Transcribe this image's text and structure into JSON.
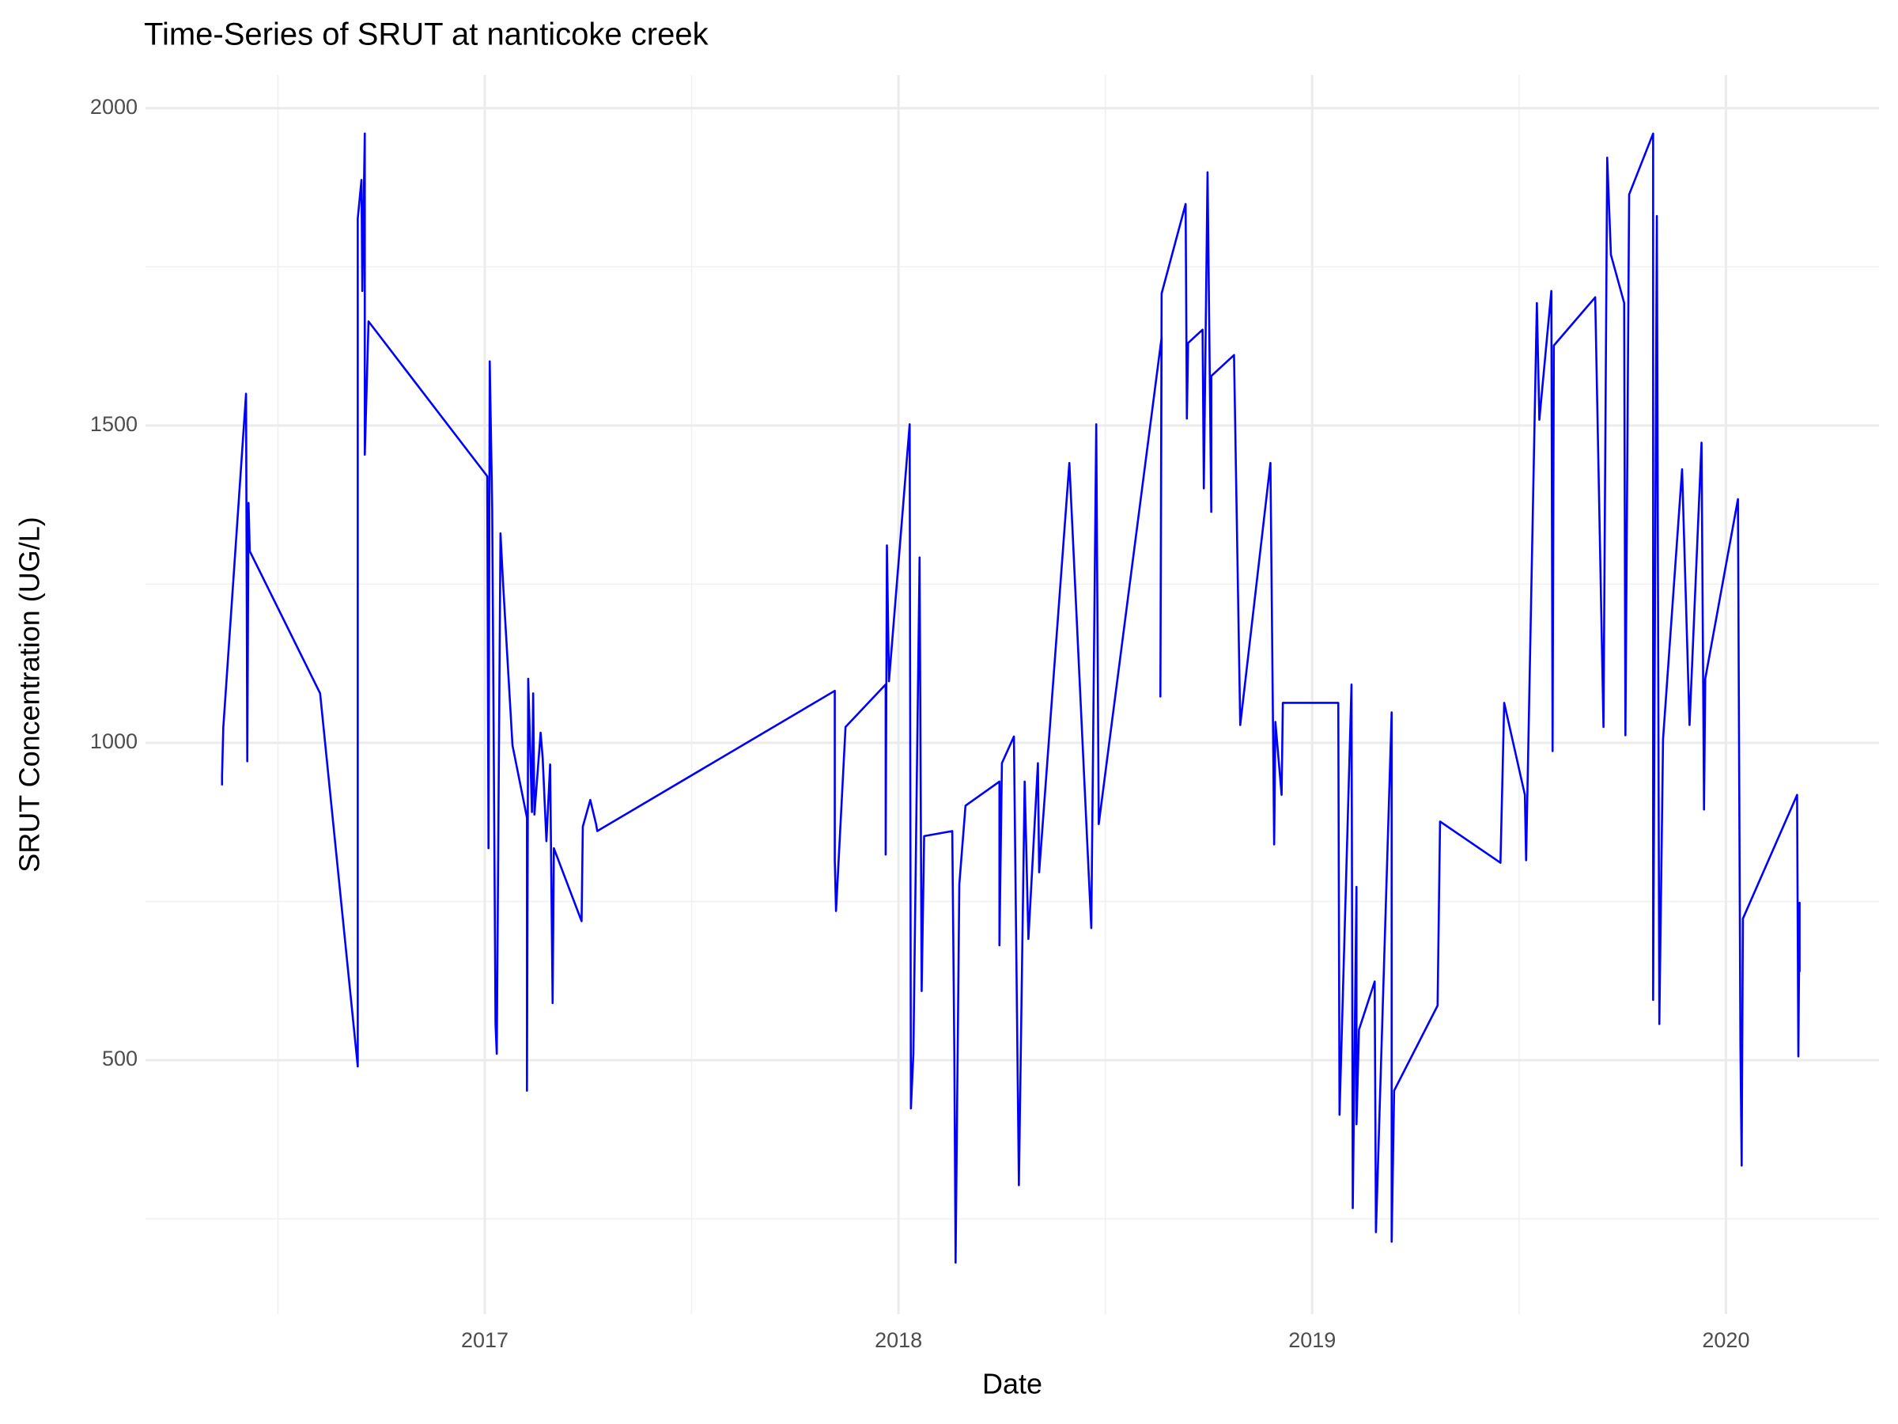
{
  "chart_data": {
    "type": "line",
    "title": "Time-Series of SRUT at nanticoke creek",
    "x_label": "Date",
    "y_label": "SRUT Concentration (UG/L)",
    "x": [
      2016.365,
      2016.365,
      2016.368,
      2016.423,
      2016.426,
      2016.429,
      2016.432,
      2016.602,
      2016.693,
      2016.693,
      2016.702,
      2016.704,
      2016.71,
      2016.71,
      2016.719,
      2017.006,
      2017.009,
      2017.012,
      2017.018,
      2017.026,
      2017.029,
      2017.038,
      2017.044,
      2017.067,
      2017.102,
      2017.102,
      2017.105,
      2017.114,
      2017.117,
      2017.12,
      2017.135,
      2017.14,
      2017.149,
      2017.158,
      2017.164,
      2017.167,
      2017.234,
      2017.237,
      2017.255,
      2017.269,
      2017.272,
      2017.846,
      2017.846,
      2017.849,
      2017.872,
      2017.969,
      2017.969,
      2017.972,
      2017.977,
      2018.027,
      2018.03,
      2018.036,
      2018.051,
      2018.056,
      2018.062,
      2018.13,
      2018.135,
      2018.138,
      2018.147,
      2018.162,
      2018.244,
      2018.244,
      2018.25,
      2018.279,
      2018.291,
      2018.305,
      2018.314,
      2018.337,
      2018.34,
      2018.413,
      2018.466,
      2018.478,
      2018.484,
      2018.636,
      2018.633,
      2018.636,
      2018.694,
      2018.697,
      2018.7,
      2018.735,
      2018.738,
      2018.747,
      2018.756,
      2018.756,
      2018.811,
      2018.826,
      2018.899,
      2018.908,
      2018.911,
      2018.926,
      2018.929,
      2019.063,
      2019.066,
      2019.095,
      2019.098,
      2019.107,
      2019.107,
      2019.113,
      2019.151,
      2019.154,
      2019.192,
      2019.192,
      2019.198,
      2019.303,
      2019.309,
      2019.455,
      2019.464,
      2019.514,
      2019.517,
      2019.543,
      2019.549,
      2019.578,
      2019.581,
      2019.584,
      2019.684,
      2019.704,
      2019.713,
      2019.722,
      2019.754,
      2019.757,
      2019.766,
      2019.824,
      2019.824,
      2019.833,
      2019.839,
      2019.848,
      2019.894,
      2019.912,
      2019.941,
      2019.947,
      2019.95,
      2020.029,
      2020.035,
      2020.038,
      2020.041,
      2020.172,
      2020.175,
      2020.178,
      2020.178
    ],
    "series": [
      {
        "name": "SRUT",
        "color": "#0000ff",
        "values": [
          933,
          948,
          1024,
          1550,
          971,
          1378,
          1302,
          1078,
          490,
          1826,
          1887,
          1712,
          1960,
          1454,
          1664,
          1420,
          834,
          1601,
          1368,
          557,
          510,
          1330,
          1254,
          996,
          882,
          452,
          1101,
          891,
          1078,
          887,
          1016,
          976,
          845,
          966,
          590,
          834,
          719,
          868,
          910,
          872,
          861,
          1082,
          815,
          735,
          1025,
          1092,
          824,
          1311,
          1097,
          1502,
          424,
          510,
          1292,
          609,
          853,
          861,
          510,
          181,
          777,
          901,
          939,
          681,
          968,
          1010,
          303,
          939,
          691,
          968,
          796,
          1441,
          708,
          1502,
          872,
          1639,
          1073,
          1708,
          1849,
          1511,
          1630,
          1651,
          1401,
          1899,
          1364,
          1578,
          1611,
          1028,
          1441,
          840,
          1033,
          918,
          1063,
          1063,
          414,
          1092,
          267,
          773,
          399,
          548,
          624,
          229,
          1048,
          214,
          452,
          586,
          876,
          811,
          1063,
          918,
          815,
          1693,
          1509,
          1712,
          987,
          1626,
          1702,
          1025,
          1922,
          1769,
          1693,
          1012,
          1864,
          1960,
          595,
          1830,
          557,
          1006,
          1431,
          1028,
          1473,
          895,
          1101,
          1384,
          525,
          334,
          723,
          918,
          506,
          748,
          639
        ]
      }
    ],
    "xlim": [
      2016.18,
      2020.37
    ],
    "xticks": [
      2017,
      2018,
      2019,
      2020
    ],
    "minor_xticks": [
      2016.5,
      2017.5,
      2018.5,
      2019.5
    ],
    "ylim": [
      100,
      2052
    ],
    "yticks": [
      500,
      1000,
      1500,
      2000
    ],
    "minor_yticks": [
      250,
      750,
      1250,
      1750
    ],
    "grid": true
  }
}
